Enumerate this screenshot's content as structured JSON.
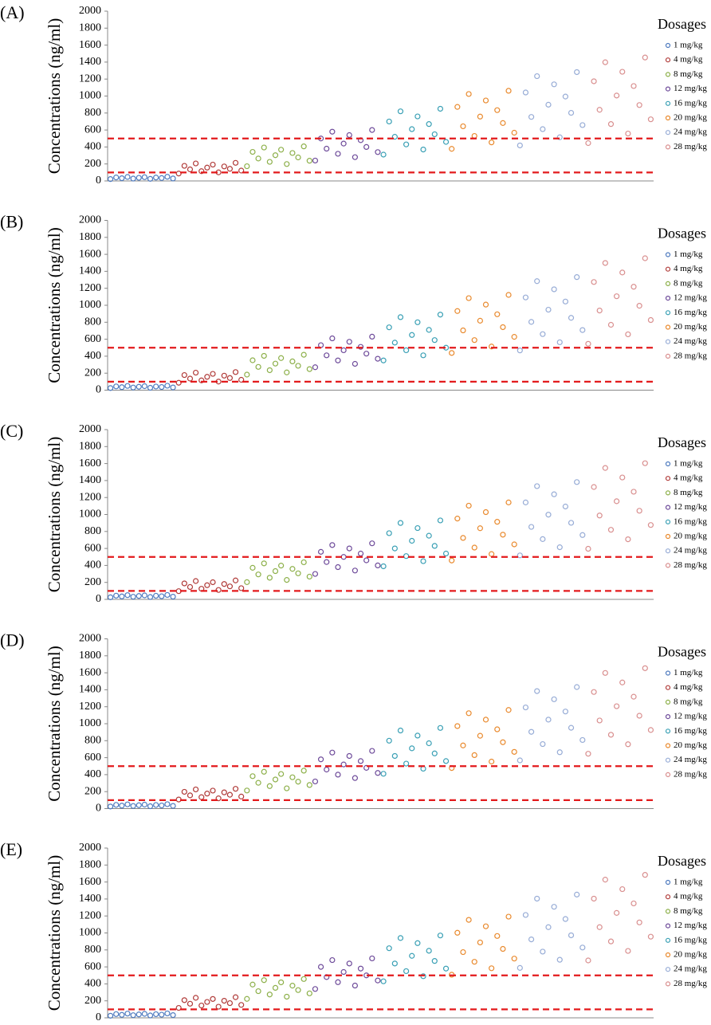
{
  "chart_data": [
    {
      "type": "scatter",
      "panel_label": "(A)",
      "y_label": "Concentrations (ng/ml)",
      "ylim": [
        0,
        2000
      ],
      "yticks": [
        0,
        200,
        400,
        600,
        800,
        1000,
        1200,
        1400,
        1600,
        1800,
        2000
      ],
      "reference_lines": [
        100,
        500
      ],
      "reference_color": "#e31a1c",
      "legend_title": "Dosages",
      "series": [
        {
          "name": "1 mg/kg",
          "color": "#4f7bbf",
          "values": [
            22,
            41,
            32,
            47,
            28,
            37,
            44,
            25,
            40,
            34,
            49,
            29
          ]
        },
        {
          "name": "4 mg/kg",
          "color": "#b03a38",
          "values": [
            87,
            178,
            136,
            206,
            115,
            157,
            192,
            101,
            171,
            143,
            213,
            122
          ]
        },
        {
          "name": "8 mg/kg",
          "color": "#8db04a",
          "values": [
            173,
            342,
            264,
            394,
            225,
            303,
            368,
            199,
            329,
            277,
            407,
            238
          ]
        },
        {
          "name": "12 mg/kg",
          "color": "#6e4b9a",
          "values": [
            240,
            500,
            380,
            580,
            320,
            440,
            540,
            280,
            480,
            400,
            600,
            340
          ]
        },
        {
          "name": "16 mg/kg",
          "color": "#3aa0b5",
          "values": [
            310,
            700,
            520,
            820,
            430,
            610,
            760,
            370,
            670,
            550,
            850,
            460
          ]
        },
        {
          "name": "20 mg/kg",
          "color": "#e98a2e",
          "values": [
            378,
            872,
            644,
            1024,
            530,
            758,
            948,
            454,
            834,
            682,
            1062,
            568
          ]
        },
        {
          "name": "24 mg/kg",
          "color": "#97acd6",
          "values": [
            418,
            1042,
            754,
            1234,
            610,
            898,
            1138,
            514,
            994,
            802,
            1282,
            658
          ]
        },
        {
          "name": "28 mg/kg",
          "color": "#d98f8f",
          "values": [
            446,
            1174,
            838,
            1398,
            670,
            1006,
            1286,
            558,
            1118,
            894,
            1454,
            726
          ]
        }
      ]
    },
    {
      "type": "scatter",
      "panel_label": "(B)",
      "y_label": "Concentrations (ng/ml)",
      "ylim": [
        0,
        2000
      ],
      "yticks": [
        0,
        200,
        400,
        600,
        800,
        1000,
        1200,
        1400,
        1600,
        1800,
        2000
      ],
      "reference_lines": [
        100,
        500
      ],
      "reference_color": "#e31a1c",
      "legend_title": "Dosages",
      "series": [
        {
          "name": "1 mg/kg",
          "color": "#4f7bbf",
          "values": [
            25,
            44,
            35,
            50,
            31,
            40,
            47,
            28,
            43,
            37,
            52,
            32
          ]
        },
        {
          "name": "4 mg/kg",
          "color": "#b03a38",
          "values": [
            87,
            178,
            136,
            206,
            115,
            157,
            192,
            101,
            171,
            143,
            213,
            122
          ]
        },
        {
          "name": "8 mg/kg",
          "color": "#8db04a",
          "values": [
            183,
            352,
            274,
            404,
            235,
            313,
            378,
            209,
            339,
            287,
            417,
            248
          ]
        },
        {
          "name": "12 mg/kg",
          "color": "#6e4b9a",
          "values": [
            270,
            530,
            410,
            610,
            350,
            470,
            570,
            310,
            510,
            430,
            630,
            370
          ]
        },
        {
          "name": "16 mg/kg",
          "color": "#3aa0b5",
          "values": [
            350,
            740,
            560,
            860,
            470,
            650,
            800,
            410,
            710,
            590,
            890,
            500
          ]
        },
        {
          "name": "20 mg/kg",
          "color": "#e98a2e",
          "values": [
            438,
            932,
            704,
            1084,
            590,
            818,
            1008,
            514,
            894,
            742,
            1122,
            628
          ]
        },
        {
          "name": "24 mg/kg",
          "color": "#97acd6",
          "values": [
            468,
            1092,
            804,
            1284,
            660,
            948,
            1188,
            564,
            1044,
            852,
            1332,
            708
          ]
        },
        {
          "name": "28 mg/kg",
          "color": "#d98f8f",
          "values": [
            546,
            1274,
            938,
            1498,
            770,
            1106,
            1386,
            658,
            1218,
            994,
            1554,
            826
          ]
        }
      ]
    },
    {
      "type": "scatter",
      "panel_label": "(C)",
      "y_label": "Concentrations (ng/ml)",
      "ylim": [
        0,
        2000
      ],
      "yticks": [
        0,
        200,
        400,
        600,
        800,
        1000,
        1200,
        1400,
        1600,
        1800,
        2000
      ],
      "reference_lines": [
        100,
        500
      ],
      "reference_color": "#e31a1c",
      "legend_title": "Dosages",
      "series": [
        {
          "name": "1 mg/kg",
          "color": "#4f7bbf",
          "values": [
            25,
            44,
            35,
            50,
            31,
            40,
            47,
            28,
            43,
            37,
            52,
            32
          ]
        },
        {
          "name": "4 mg/kg",
          "color": "#b03a38",
          "values": [
            97,
            188,
            146,
            216,
            125,
            167,
            202,
            111,
            181,
            153,
            223,
            132
          ]
        },
        {
          "name": "8 mg/kg",
          "color": "#8db04a",
          "values": [
            203,
            372,
            294,
            424,
            255,
            333,
            398,
            229,
            359,
            307,
            437,
            268
          ]
        },
        {
          "name": "12 mg/kg",
          "color": "#6e4b9a",
          "values": [
            300,
            560,
            440,
            640,
            380,
            500,
            600,
            340,
            540,
            460,
            660,
            400
          ]
        },
        {
          "name": "16 mg/kg",
          "color": "#3aa0b5",
          "values": [
            390,
            780,
            600,
            900,
            510,
            690,
            840,
            450,
            750,
            630,
            930,
            540
          ]
        },
        {
          "name": "20 mg/kg",
          "color": "#e98a2e",
          "values": [
            458,
            952,
            724,
            1104,
            610,
            838,
            1028,
            534,
            914,
            762,
            1142,
            648
          ]
        },
        {
          "name": "24 mg/kg",
          "color": "#97acd6",
          "values": [
            518,
            1142,
            854,
            1334,
            710,
            998,
            1238,
            614,
            1094,
            902,
            1382,
            758
          ]
        },
        {
          "name": "28 mg/kg",
          "color": "#d98f8f",
          "values": [
            596,
            1324,
            988,
            1548,
            820,
            1156,
            1436,
            708,
            1268,
            1044,
            1604,
            876
          ]
        }
      ]
    },
    {
      "type": "scatter",
      "panel_label": "(D)",
      "y_label": "Concentrations (ng/ml)",
      "ylim": [
        0,
        2000
      ],
      "yticks": [
        0,
        200,
        400,
        600,
        800,
        1000,
        1200,
        1400,
        1600,
        1800,
        2000
      ],
      "reference_lines": [
        100,
        500
      ],
      "reference_color": "#e31a1c",
      "legend_title": "Dosages",
      "series": [
        {
          "name": "1 mg/kg",
          "color": "#4f7bbf",
          "values": [
            25,
            44,
            35,
            50,
            31,
            40,
            47,
            28,
            43,
            37,
            52,
            32
          ]
        },
        {
          "name": "4 mg/kg",
          "color": "#b03a38",
          "values": [
            107,
            198,
            156,
            226,
            135,
            177,
            212,
            121,
            191,
            163,
            233,
            142
          ]
        },
        {
          "name": "8 mg/kg",
          "color": "#8db04a",
          "values": [
            213,
            382,
            304,
            434,
            265,
            343,
            408,
            239,
            369,
            317,
            447,
            278
          ]
        },
        {
          "name": "12 mg/kg",
          "color": "#6e4b9a",
          "values": [
            320,
            580,
            460,
            660,
            400,
            520,
            620,
            360,
            560,
            480,
            680,
            420
          ]
        },
        {
          "name": "16 mg/kg",
          "color": "#3aa0b5",
          "values": [
            410,
            800,
            620,
            920,
            530,
            710,
            860,
            470,
            770,
            650,
            950,
            560
          ]
        },
        {
          "name": "20 mg/kg",
          "color": "#e98a2e",
          "values": [
            478,
            972,
            744,
            1124,
            630,
            858,
            1048,
            554,
            934,
            782,
            1162,
            668
          ]
        },
        {
          "name": "24 mg/kg",
          "color": "#97acd6",
          "values": [
            568,
            1192,
            904,
            1384,
            760,
            1048,
            1288,
            664,
            1144,
            952,
            1432,
            808
          ]
        },
        {
          "name": "28 mg/kg",
          "color": "#d98f8f",
          "values": [
            646,
            1374,
            1038,
            1598,
            870,
            1206,
            1486,
            758,
            1318,
            1094,
            1654,
            926
          ]
        }
      ]
    },
    {
      "type": "scatter",
      "panel_label": "(E)",
      "y_label": "Concentrations (ng/ml)",
      "ylim": [
        0,
        2000
      ],
      "yticks": [
        0,
        200,
        400,
        600,
        800,
        1000,
        1200,
        1400,
        1600,
        1800,
        2000
      ],
      "reference_lines": [
        100,
        500
      ],
      "reference_color": "#e31a1c",
      "legend_title": "Dosages",
      "series": [
        {
          "name": "1 mg/kg",
          "color": "#4f7bbf",
          "values": [
            25,
            44,
            35,
            50,
            31,
            40,
            47,
            28,
            43,
            37,
            52,
            32
          ]
        },
        {
          "name": "4 mg/kg",
          "color": "#b03a38",
          "values": [
            117,
            208,
            166,
            236,
            145,
            187,
            222,
            131,
            201,
            173,
            243,
            152
          ]
        },
        {
          "name": "8 mg/kg",
          "color": "#8db04a",
          "values": [
            223,
            392,
            314,
            444,
            275,
            353,
            418,
            249,
            379,
            327,
            457,
            288
          ]
        },
        {
          "name": "12 mg/kg",
          "color": "#6e4b9a",
          "values": [
            340,
            600,
            480,
            680,
            420,
            540,
            640,
            380,
            580,
            500,
            700,
            440
          ]
        },
        {
          "name": "16 mg/kg",
          "color": "#3aa0b5",
          "values": [
            430,
            820,
            640,
            940,
            550,
            730,
            880,
            490,
            790,
            670,
            970,
            580
          ]
        },
        {
          "name": "20 mg/kg",
          "color": "#e98a2e",
          "values": [
            508,
            1002,
            774,
            1154,
            660,
            888,
            1078,
            584,
            964,
            812,
            1192,
            698
          ]
        },
        {
          "name": "24 mg/kg",
          "color": "#97acd6",
          "values": [
            588,
            1212,
            924,
            1404,
            780,
            1068,
            1308,
            684,
            1164,
            972,
            1452,
            828
          ]
        },
        {
          "name": "28 mg/kg",
          "color": "#d98f8f",
          "values": [
            676,
            1404,
            1068,
            1628,
            900,
            1236,
            1516,
            788,
            1348,
            1124,
            1684,
            956
          ]
        }
      ]
    }
  ]
}
